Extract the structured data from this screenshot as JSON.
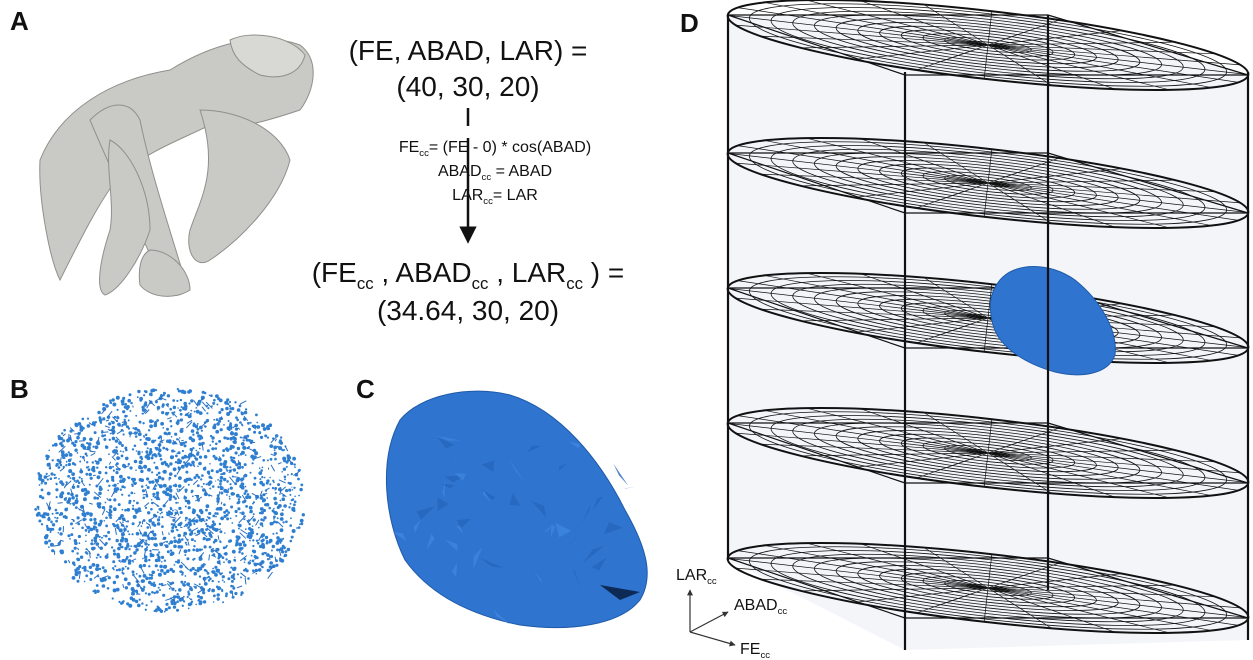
{
  "panels": {
    "a": "A",
    "b": "B",
    "c": "C",
    "d": "D"
  },
  "equation": {
    "input": {
      "line1": "(FE, ABAD, LAR) =",
      "line2": "(40, 30, 20)"
    },
    "transform": [
      [
        {
          "t": "FE"
        },
        {
          "sub": "cc"
        },
        {
          "t": "= (FE - 0) * cos(ABAD)"
        }
      ],
      [
        {
          "t": "ABAD"
        },
        {
          "sub": "cc"
        },
        {
          "t": " = ABAD"
        }
      ],
      [
        {
          "t": "LAR"
        },
        {
          "sub": "cc"
        },
        {
          "t": "= LAR"
        }
      ]
    ],
    "output": {
      "line1": [
        {
          "t": "(FE"
        },
        {
          "sub": "cc"
        },
        {
          "t": " , ABAD"
        },
        {
          "sub": "cc"
        },
        {
          "t": " , LAR"
        },
        {
          "sub": "cc"
        },
        {
          "t": " ) ="
        }
      ],
      "line2": "(34.64, 30, 20)"
    }
  },
  "axes": {
    "vertical": [
      {
        "t": "LAR"
      },
      {
        "sub": "cc"
      }
    ],
    "depth": [
      {
        "t": "ABAD"
      },
      {
        "sub": "cc"
      }
    ],
    "horizontal": [
      {
        "t": "FE"
      },
      {
        "sub": "cc"
      }
    ]
  }
}
